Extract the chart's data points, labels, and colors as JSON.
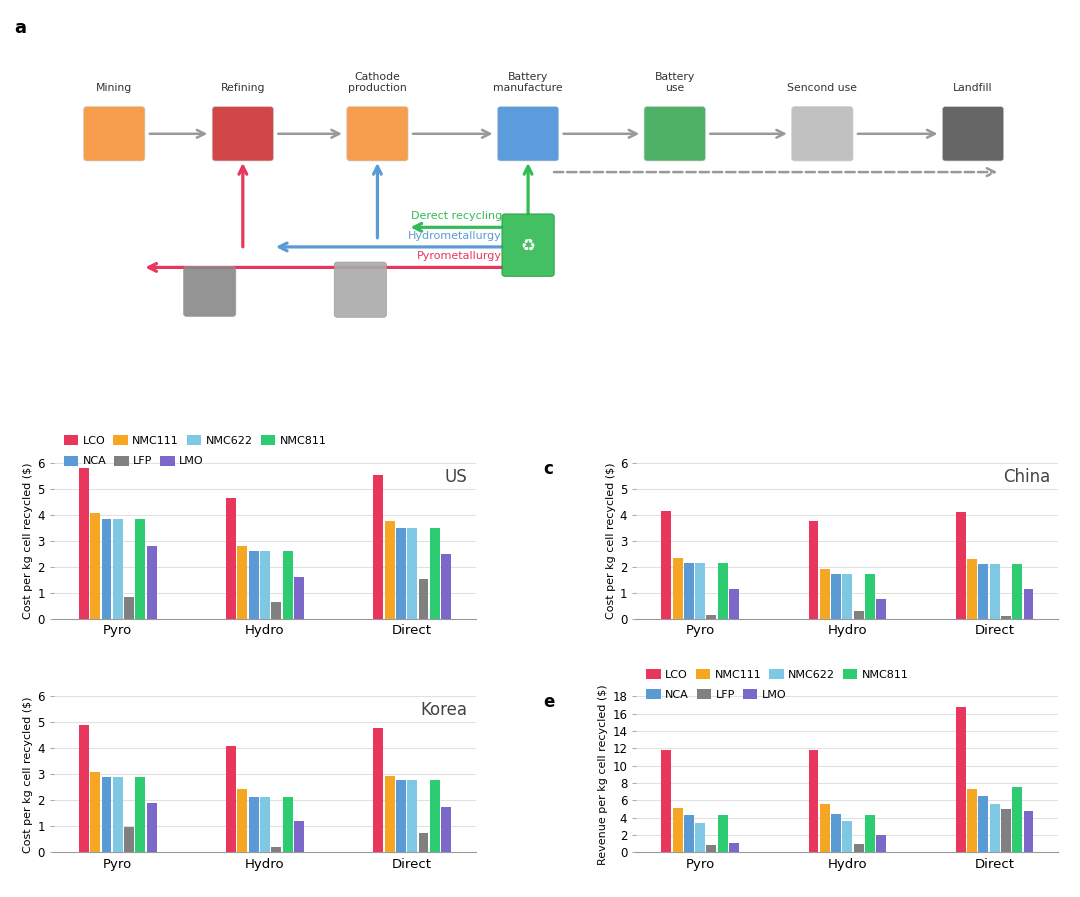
{
  "colors": {
    "LCO": "#e8365d",
    "NMC111": "#f5a623",
    "NCA": "#5b9bd5",
    "NMC622": "#7ec8e3",
    "LFP": "#808080",
    "NMC811": "#2ecc71",
    "LMO": "#7b68c8"
  },
  "legend_row1": [
    "LCO",
    "NMC111",
    "NMC622",
    "NMC811"
  ],
  "legend_row2": [
    "NCA",
    "LFP",
    "LMO"
  ],
  "categories": [
    "Pyro",
    "Hydro",
    "Direct"
  ],
  "species_order": [
    "LCO",
    "NMC111",
    "NCA",
    "NMC622",
    "LFP",
    "NMC811",
    "LMO"
  ],
  "panel_b": {
    "title": "US",
    "ylabel": "Cost per kg cell recycled ($)",
    "ylim": [
      0,
      6
    ],
    "yticks": [
      0,
      1,
      2,
      3,
      4,
      5,
      6
    ],
    "data": {
      "LCO": [
        5.8,
        4.65,
        5.55
      ],
      "NMC111": [
        4.05,
        2.8,
        3.75
      ],
      "NCA": [
        3.82,
        2.62,
        3.5
      ],
      "NMC622": [
        3.82,
        2.62,
        3.5
      ],
      "LFP": [
        0.82,
        0.62,
        1.52
      ],
      "NMC811": [
        3.82,
        2.62,
        3.5
      ],
      "LMO": [
        2.8,
        1.6,
        2.48
      ]
    }
  },
  "panel_c": {
    "title": "China",
    "ylabel": "Cost per kg cell recycled ($)",
    "ylim": [
      0,
      6
    ],
    "yticks": [
      0,
      1,
      2,
      3,
      4,
      5,
      6
    ],
    "data": {
      "LCO": [
        4.15,
        3.75,
        4.1
      ],
      "NMC111": [
        2.35,
        1.9,
        2.3
      ],
      "NCA": [
        2.15,
        1.7,
        2.1
      ],
      "NMC622": [
        2.15,
        1.7,
        2.1
      ],
      "LFP": [
        0.12,
        0.28,
        0.08
      ],
      "NMC811": [
        2.15,
        1.7,
        2.1
      ],
      "LMO": [
        1.15,
        0.75,
        1.12
      ]
    }
  },
  "panel_d": {
    "title": "Korea",
    "ylabel": "Cost per kg cell recycled ($)",
    "ylim": [
      0,
      6
    ],
    "yticks": [
      0,
      1,
      2,
      3,
      4,
      5,
      6
    ],
    "data": {
      "LCO": [
        4.9,
        4.1,
        4.8
      ],
      "NMC111": [
        3.1,
        2.42,
        2.95
      ],
      "NCA": [
        2.9,
        2.12,
        2.78
      ],
      "NMC622": [
        2.9,
        2.12,
        2.78
      ],
      "LFP": [
        0.95,
        0.18,
        0.73
      ],
      "NMC811": [
        2.9,
        2.12,
        2.78
      ],
      "LMO": [
        1.9,
        1.2,
        1.75
      ]
    }
  },
  "panel_e": {
    "title": "",
    "ylabel": "Revenue per kg cell recycled ($)",
    "ylim": [
      0,
      18
    ],
    "yticks": [
      0,
      2,
      4,
      6,
      8,
      10,
      12,
      14,
      16,
      18
    ],
    "data": {
      "LCO": [
        11.8,
        11.8,
        16.8
      ],
      "NMC111": [
        5.15,
        5.55,
        7.3
      ],
      "NCA": [
        4.35,
        4.4,
        6.45
      ],
      "NMC622": [
        3.35,
        3.55,
        5.55
      ],
      "LFP": [
        0.8,
        0.95,
        4.95
      ],
      "NMC811": [
        4.25,
        4.35,
        7.55
      ],
      "LMO": [
        1.0,
        2.0,
        4.75
      ]
    }
  }
}
